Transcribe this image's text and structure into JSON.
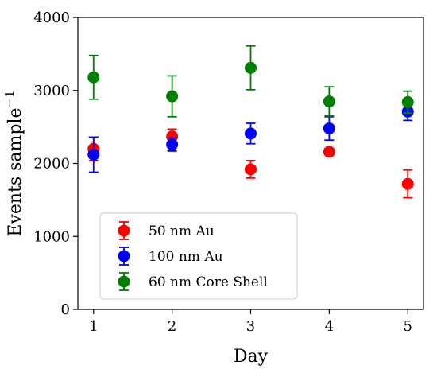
{
  "chart_data": {
    "type": "scatter",
    "xlabel": "Day",
    "ylabel": "Events sample",
    "ylabel_superscript": "−1",
    "xlim": [
      0.8,
      5.2
    ],
    "ylim": [
      0,
      4000
    ],
    "x_ticks": [
      1,
      2,
      3,
      4,
      5
    ],
    "y_ticks": [
      0,
      1000,
      2000,
      3000,
      4000
    ],
    "grid": false,
    "legend_position": "lower-left",
    "x": [
      1,
      2,
      3,
      4,
      5
    ],
    "series": [
      {
        "name": "50 nm Au",
        "color": "#ff0000",
        "values": [
          2200,
          2370,
          1920,
          2160,
          1720
        ],
        "errors": [
          160,
          100,
          120,
          40,
          190
        ]
      },
      {
        "name": "100 nm Au",
        "color": "#0000ff",
        "values": [
          2120,
          2260,
          2410,
          2480,
          2710
        ],
        "errors": [
          240,
          90,
          140,
          160,
          120
        ]
      },
      {
        "name": "60 nm Core Shell",
        "color": "#008000",
        "values": [
          3180,
          2920,
          3310,
          2850,
          2840
        ],
        "errors": [
          300,
          280,
          300,
          200,
          150
        ]
      }
    ]
  }
}
